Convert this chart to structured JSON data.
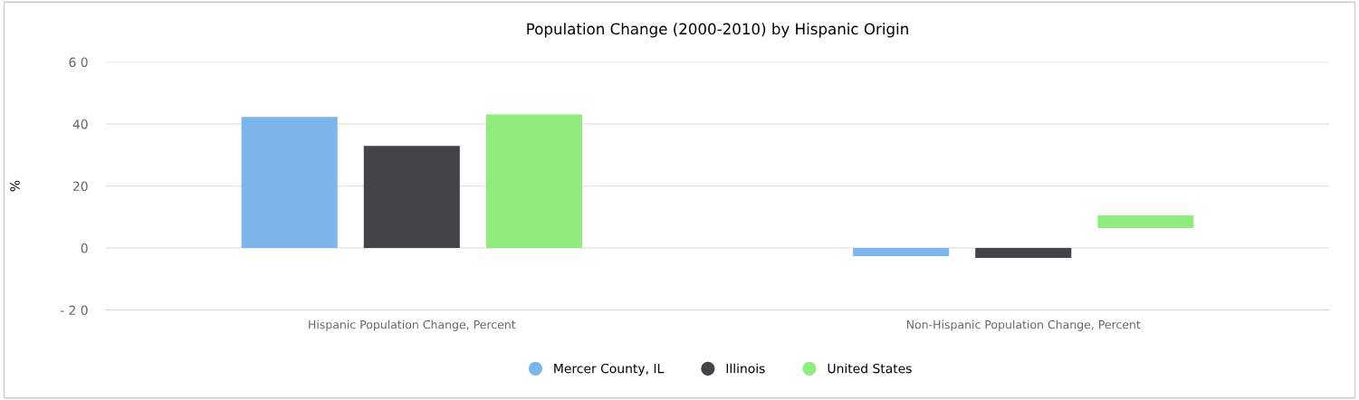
{
  "chart_data": {
    "type": "bar",
    "title": "Population Change (2000-2010) by Hispanic Origin",
    "ylabel": "%",
    "categories": [
      "Hispanic Population Change, Percent",
      "Non-Hispanic Population Change, Percent"
    ],
    "series": [
      {
        "name": "Mercer County, IL",
        "color": "#7cb5ec",
        "values": [
          42.3,
          -2.6
        ]
      },
      {
        "name": "Illinois",
        "color": "#434348",
        "values": [
          32.9,
          -3.2
        ]
      },
      {
        "name": "United States",
        "color": "#90ed7d",
        "values": [
          43.1,
          4.1
        ],
        "base": [
          0,
          6.4
        ]
      }
    ],
    "ylim": [
      -20,
      60
    ],
    "yticks": [
      {
        "value": -20,
        "label": "- 2 0"
      },
      0,
      20,
      40,
      {
        "value": 60,
        "label": "6 0"
      }
    ],
    "grid": "y",
    "legend": "bottom"
  }
}
